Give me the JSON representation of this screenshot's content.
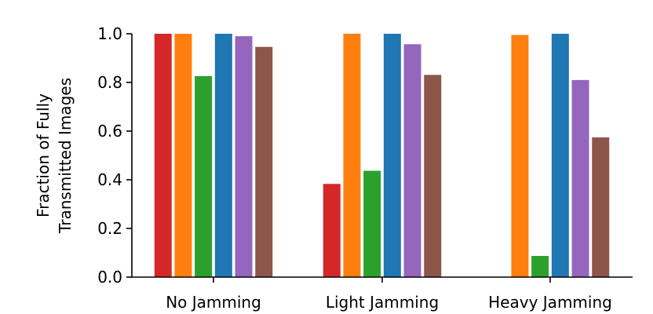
{
  "chart_data": {
    "type": "bar",
    "categories": [
      "No Jamming",
      "Light Jamming",
      "Heavy Jamming"
    ],
    "ylabel_lines": [
      "Fraction of Fully",
      "Transmitted Images"
    ],
    "ylim": [
      0.0,
      1.0
    ],
    "yticks": [
      "0.0",
      "0.2",
      "0.4",
      "0.6",
      "0.8",
      "1.0"
    ],
    "grid": false,
    "series": [
      {
        "color": "#d62728",
        "values": [
          1.0,
          0.383,
          0.0
        ]
      },
      {
        "color": "#ff7f0e",
        "values": [
          1.0,
          1.0,
          0.995
        ]
      },
      {
        "color": "#2ca02c",
        "values": [
          0.826,
          0.437,
          0.087
        ]
      },
      {
        "color": "#1f77b4",
        "values": [
          1.0,
          1.0,
          1.0
        ]
      },
      {
        "color": "#9467bd",
        "values": [
          0.99,
          0.957,
          0.81
        ]
      },
      {
        "color": "#8c564b",
        "values": [
          0.946,
          0.831,
          0.574
        ]
      }
    ]
  }
}
